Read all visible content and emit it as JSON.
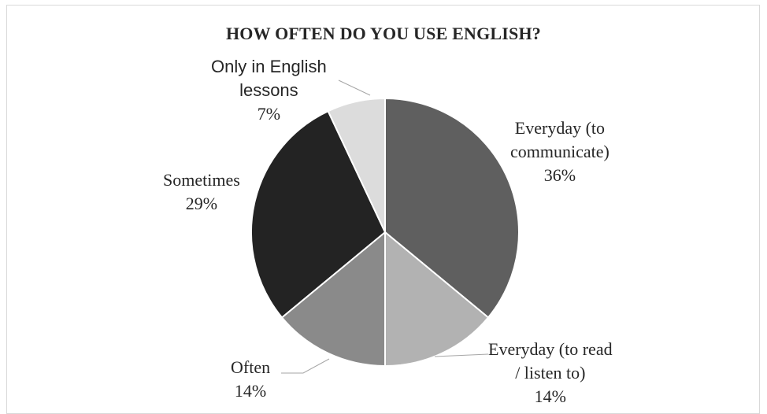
{
  "chart_data": {
    "type": "pie",
    "title": "HOW OFTEN DO YOU USE ENGLISH?",
    "slices": [
      {
        "label": "Everyday (to communicate)",
        "value": 36,
        "value_label": "36%",
        "color": "#5f5f5f"
      },
      {
        "label": "Everyday (to read / listen to)",
        "value": 14,
        "value_label": "14%",
        "color": "#b2b2b2"
      },
      {
        "label": "Often",
        "value": 14,
        "value_label": "14%",
        "color": "#8a8a8a"
      },
      {
        "label": "Sometimes",
        "value": 29,
        "value_label": "29%",
        "color": "#232323"
      },
      {
        "label": "Only in English lessons",
        "value": 7,
        "value_label": "7%",
        "color": "#dcdcdc"
      }
    ],
    "label_lines": {
      "s0": [
        "Everyday (to",
        "communicate)",
        "36%"
      ],
      "s1": [
        "Everyday (to read",
        "/ listen to)",
        "14%"
      ],
      "s2": [
        "Often",
        "14%"
      ],
      "s3": [
        "Sometimes",
        "29%"
      ],
      "s4": [
        "Only in English",
        "lessons",
        "7%"
      ]
    },
    "legend": "none",
    "start_angle": "12 o'clock, clockwise"
  }
}
